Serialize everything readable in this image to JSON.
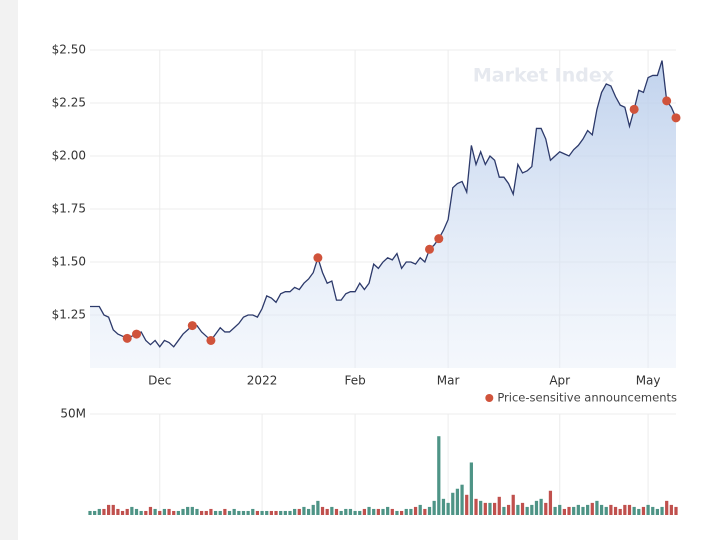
{
  "chart_data": [
    {
      "type": "area",
      "watermark": "Market Index",
      "legend": "Price-sensitive announcements",
      "legend_position": "bottom-right",
      "grid": true,
      "series": [
        {
          "name": "Price",
          "color": "#2d3a6b",
          "values": [
            1.29,
            1.29,
            1.29,
            1.25,
            1.24,
            1.18,
            1.16,
            1.15,
            1.14,
            1.15,
            1.16,
            1.17,
            1.13,
            1.11,
            1.13,
            1.1,
            1.13,
            1.12,
            1.1,
            1.13,
            1.16,
            1.18,
            1.2,
            1.2,
            1.17,
            1.15,
            1.13,
            1.16,
            1.19,
            1.17,
            1.17,
            1.19,
            1.21,
            1.24,
            1.25,
            1.25,
            1.24,
            1.28,
            1.34,
            1.33,
            1.31,
            1.35,
            1.36,
            1.36,
            1.38,
            1.37,
            1.4,
            1.42,
            1.45,
            1.52,
            1.45,
            1.4,
            1.41,
            1.32,
            1.32,
            1.35,
            1.36,
            1.36,
            1.4,
            1.37,
            1.4,
            1.49,
            1.47,
            1.5,
            1.52,
            1.51,
            1.54,
            1.47,
            1.5,
            1.5,
            1.49,
            1.52,
            1.5,
            1.56,
            1.58,
            1.61,
            1.65,
            1.7,
            1.85,
            1.87,
            1.88,
            1.83,
            2.05,
            1.96,
            2.02,
            1.96,
            2.0,
            1.98,
            1.9,
            1.9,
            1.87,
            1.82,
            1.96,
            1.92,
            1.93,
            1.95,
            2.13,
            2.13,
            2.08,
            1.98,
            2.0,
            2.02,
            2.01,
            2.0,
            2.03,
            2.05,
            2.08,
            2.12,
            2.1,
            2.22,
            2.3,
            2.34,
            2.33,
            2.28,
            2.24,
            2.23,
            2.14,
            2.22,
            2.31,
            2.3,
            2.37,
            2.38,
            2.38,
            2.45,
            2.26,
            2.23,
            2.18
          ]
        }
      ],
      "announcements": {
        "color": "#d0533b",
        "points": [
          8,
          10,
          22,
          26,
          49,
          73,
          75,
          117,
          124,
          126
        ]
      },
      "xlim": [
        0,
        126
      ],
      "xticks": [
        {
          "value": 15,
          "label": "Dec"
        },
        {
          "value": 37,
          "label": "2022"
        },
        {
          "value": 57,
          "label": "Feb"
        },
        {
          "value": 77,
          "label": "Mar"
        },
        {
          "value": 101,
          "label": "Apr"
        },
        {
          "value": 120,
          "label": "May"
        }
      ],
      "ylim": [
        1.0,
        2.5
      ],
      "yticks": [
        {
          "value": 1.25,
          "label": "$1.25"
        },
        {
          "value": 1.5,
          "label": "$1.50"
        },
        {
          "value": 1.75,
          "label": "$1.75"
        },
        {
          "value": 2.0,
          "label": "$2.00"
        },
        {
          "value": 2.25,
          "label": "$2.25"
        },
        {
          "value": 2.5,
          "label": "$2.50"
        }
      ]
    },
    {
      "type": "bar",
      "grid": true,
      "colors": {
        "up": "#4e9486",
        "down": "#c0504d"
      },
      "values": [
        2,
        2,
        3,
        3,
        5,
        5,
        3,
        2,
        3,
        4,
        3,
        2,
        2,
        4,
        3,
        2,
        3,
        3,
        2,
        2,
        3,
        4,
        4,
        3,
        2,
        2,
        3,
        2,
        2,
        3,
        2,
        3,
        2,
        2,
        2,
        3,
        2,
        2,
        2,
        2,
        2,
        2,
        2,
        2,
        3,
        3,
        4,
        3,
        5,
        7,
        4,
        3,
        4,
        3,
        2,
        3,
        3,
        2,
        2,
        3,
        4,
        3,
        3,
        3,
        4,
        3,
        2,
        2,
        3,
        3,
        4,
        5,
        3,
        4,
        7,
        39,
        8,
        6,
        11,
        13,
        15,
        10,
        26,
        8,
        7,
        6,
        6,
        6,
        9,
        4,
        5,
        10,
        5,
        6,
        4,
        5,
        7,
        8,
        6,
        12,
        4,
        5,
        3,
        4,
        4,
        5,
        4,
        5,
        6,
        7,
        5,
        4,
        5,
        4,
        3,
        5,
        5,
        4,
        3,
        4,
        5,
        4,
        3,
        4,
        7,
        5,
        4
      ],
      "xlim": [
        0,
        126
      ],
      "ylim": [
        0,
        50
      ],
      "yticks": [
        {
          "value": 50,
          "label": "50M"
        }
      ]
    }
  ]
}
